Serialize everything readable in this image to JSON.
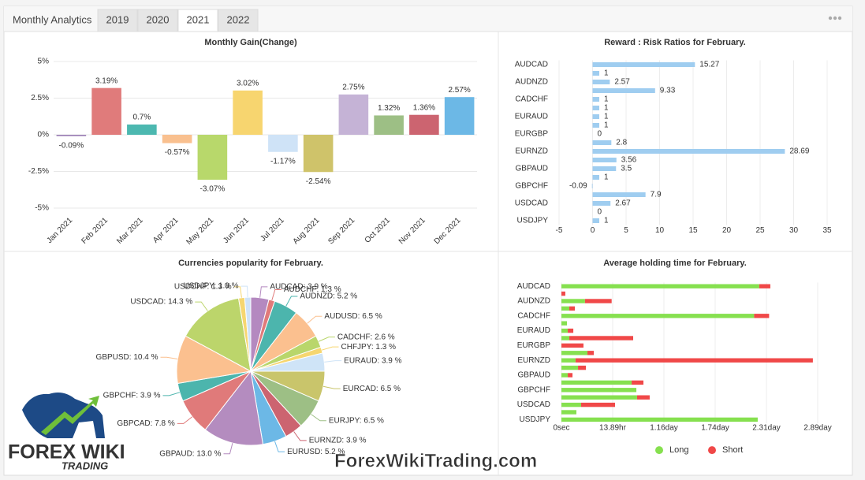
{
  "header": {
    "title": "Monthly Analytics",
    "tabs": [
      "2019",
      "2020",
      "2021",
      "2022"
    ],
    "active_tab": "2021"
  },
  "chart_data": [
    {
      "type": "bar",
      "title": "Monthly Gain(Change)",
      "categories": [
        "Jan 2021",
        "Feb 2021",
        "Mar 2021",
        "Apr 2021",
        "May 2021",
        "Jun 2021",
        "Jul 2021",
        "Aug 2021",
        "Sep 2021",
        "Oct 2021",
        "Nov 2021",
        "Dec 2021"
      ],
      "values": [
        -0.09,
        3.19,
        0.7,
        -0.57,
        -3.07,
        3.02,
        -1.17,
        -2.54,
        2.75,
        1.32,
        1.36,
        2.57
      ],
      "value_labels": [
        "-0.09%",
        "3.19%",
        "0.7%",
        "-0.57%",
        "-3.07%",
        "3.02%",
        "-1.17%",
        "-2.54%",
        "2.75%",
        "1.32%",
        "1.36%",
        "2.57%"
      ],
      "colors": [
        "#9b7fb5",
        "#e07b7b",
        "#4cb8b0",
        "#f9c08f",
        "#b8d86b",
        "#f7d56f",
        "#cfe3f7",
        "#cfc36a",
        "#c5b3d6",
        "#9dbf85",
        "#cc6470",
        "#6cb8e6"
      ],
      "ylim": [
        -5,
        5
      ],
      "yticks": [
        {
          "value": -5,
          "label": "-5%"
        },
        {
          "value": -2.5,
          "label": "-2.5%"
        },
        {
          "value": 0,
          "label": "0%"
        },
        {
          "value": 2.5,
          "label": "2.5%"
        },
        {
          "value": 5,
          "label": "5%"
        }
      ],
      "grid": true
    },
    {
      "type": "hbar",
      "title": "Reward : Risk Ratios for February.",
      "categories": [
        "AUDCAD",
        null,
        "AUDNZD",
        null,
        "CADCHF",
        null,
        "EURAUD",
        null,
        "EURGBP",
        null,
        "EURNZD",
        null,
        "GBPAUD",
        null,
        "GBPCHF",
        null,
        "USDCAD",
        null,
        "USDJPY"
      ],
      "values": [
        15.27,
        1,
        2.57,
        9.33,
        1,
        1,
        1,
        1,
        0,
        2.8,
        28.69,
        3.56,
        3.5,
        1,
        -0.09,
        7.9,
        2.67,
        0,
        1
      ],
      "color": "#9fcdf0",
      "xlim": [
        -5,
        35
      ],
      "xticks": [
        -5,
        0,
        5,
        10,
        15,
        20,
        25,
        30,
        35
      ],
      "grid": true
    },
    {
      "type": "pie",
      "title": "Currencies popularity for February.",
      "values": [
        3.9,
        1.3,
        5.2,
        6.5,
        2.6,
        1.3,
        3.9,
        6.5,
        6.5,
        3.9,
        5.2,
        13.0,
        7.8,
        3.9,
        10.4,
        14.3,
        1.3,
        1.3
      ],
      "value_labels": [
        "AUDCAD: 3.9 %",
        "AUDCHF: 1.3 %",
        "AUDNZD: 5.2 %",
        "AUDUSD: 6.5 %",
        "CADCHF: 2.6 %",
        "CHFJPY: 1.3 %",
        "EURAUD: 3.9 %",
        "EURCAD: 6.5 %",
        "EURJPY: 6.5 %",
        "EURNZD: 3.9 %",
        "EURUSD: 5.2 %",
        "GBPAUD: 13.0 %",
        "GBPCAD: 7.8 %",
        "GBPCHF: 3.9 %",
        "GBPUSD: 10.4 %",
        "USDCAD: 14.3 %",
        "USDCHF: 1.3 %",
        "USDJPY: 1.3 %"
      ],
      "colors": [
        "#b489c0",
        "#e07a7a",
        "#4cb5ad",
        "#fbc08f",
        "#b9d66b",
        "#f6d66f",
        "#cfe4f7",
        "#c9c56b",
        "#9dbf85",
        "#cc6470",
        "#6cb8e6",
        "#b48cbf",
        "#e07a7a",
        "#4cb5ad",
        "#fbc08f",
        "#bcd56b",
        "#f6d66f",
        "#cfe3f7"
      ]
    },
    {
      "type": "stacked_hbar",
      "title": "Average holding time for February.",
      "categories": [
        "AUDCAD",
        null,
        "AUDNZD",
        null,
        "CADCHF",
        null,
        "EURAUD",
        null,
        "EURGBP",
        null,
        "EURNZD",
        null,
        "GBPAUD",
        null,
        "GBPCHF",
        null,
        "USDCAD",
        null,
        "USDJPY"
      ],
      "series": [
        {
          "name": "Long",
          "color": "#86e04f",
          "values": [
            193000,
            0,
            23000,
            7700,
            188000,
            5400,
            6200,
            7700,
            0,
            25400,
            13800,
            16200,
            6200,
            68500,
            73100,
            73800,
            19200,
            14600,
            191500
          ]
        },
        {
          "name": "Short",
          "color": "#f04848",
          "values": [
            10800,
            3800,
            26000,
            5400,
            14600,
            0,
            5400,
            62300,
            21500,
            6200,
            231500,
            7700,
            4600,
            11500,
            0,
            12300,
            33100,
            0,
            0
          ]
        }
      ],
      "xlim": [
        0,
        250000
      ],
      "xticks": [
        {
          "value": 0,
          "label": "0sec"
        },
        {
          "value": 50000,
          "label": "13.89hr"
        },
        {
          "value": 100000,
          "label": "1.16day"
        },
        {
          "value": 150000,
          "label": "1.74day"
        },
        {
          "value": 200000,
          "label": "2.31day"
        },
        {
          "value": 250000,
          "label": "2.89day"
        }
      ],
      "grid": true,
      "legend": "bottom"
    }
  ],
  "watermark": {
    "logo_top": "FOREX WIKI",
    "logo_bottom": "TRADING",
    "site": "ForexWikiTrading.com"
  }
}
